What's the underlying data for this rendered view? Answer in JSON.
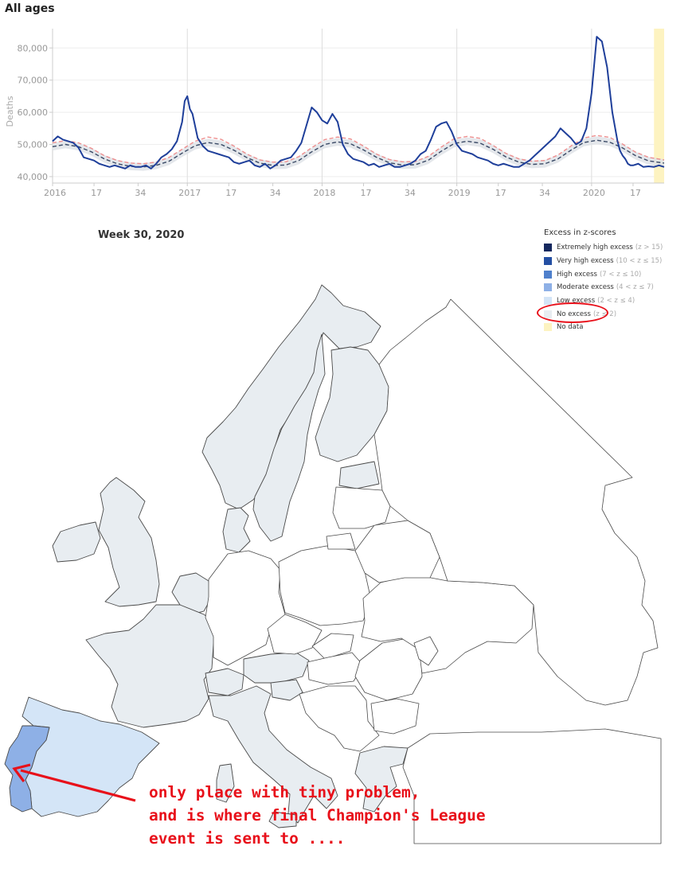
{
  "chart_data": {
    "type": "line",
    "title": "All ages",
    "ylabel": "Deaths",
    "xlabel": "",
    "ylim": [
      38000,
      86000
    ],
    "yticks": [
      40000,
      50000,
      60000,
      70000,
      80000
    ],
    "ytick_labels": [
      "40,000",
      "50,000",
      "60,000",
      "70,000",
      "80,000"
    ],
    "xlim": [
      0,
      236
    ],
    "xticks": [
      0,
      16,
      33,
      52,
      68,
      85,
      104,
      120,
      137,
      156,
      172,
      189,
      208,
      224
    ],
    "xtick_labels": [
      "2016",
      "17",
      "34",
      "2017",
      "17",
      "34",
      "2018",
      "17",
      "34",
      "2019",
      "17",
      "34",
      "2020",
      "17"
    ],
    "grid": true,
    "highlight_band": {
      "from": 233,
      "to": 236,
      "color": "#fdf3c1"
    },
    "series": [
      {
        "name": "",
        "color": "#1f3f9a",
        "style": "solid",
        "x": [
          0,
          2,
          4,
          6,
          8,
          10,
          12,
          14,
          16,
          18,
          20,
          22,
          24,
          26,
          28,
          30,
          32,
          34,
          36,
          38,
          40,
          42,
          44,
          46,
          48,
          50,
          51,
          52,
          53,
          54,
          56,
          58,
          60,
          62,
          64,
          66,
          68,
          70,
          72,
          74,
          76,
          78,
          80,
          82,
          84,
          86,
          88,
          90,
          92,
          94,
          96,
          98,
          100,
          102,
          104,
          106,
          108,
          110,
          112,
          114,
          116,
          118,
          120,
          122,
          124,
          126,
          128,
          130,
          132,
          134,
          136,
          138,
          140,
          142,
          144,
          146,
          148,
          150,
          152,
          154,
          156,
          158,
          160,
          162,
          164,
          166,
          168,
          170,
          172,
          174,
          176,
          178,
          180,
          182,
          184,
          186,
          188,
          190,
          192,
          194,
          196,
          198,
          200,
          202,
          204,
          206,
          208,
          210,
          212,
          214,
          216,
          218,
          219,
          220,
          221,
          222,
          223,
          224,
          226,
          228,
          230,
          232,
          234,
          236
        ],
        "y": [
          51000,
          52500,
          51500,
          51000,
          50500,
          49000,
          46000,
          45500,
          45000,
          44000,
          43500,
          43000,
          43500,
          43000,
          42500,
          43500,
          43000,
          43000,
          43500,
          42500,
          44000,
          46000,
          47000,
          48500,
          51000,
          57000,
          63500,
          65000,
          61000,
          59500,
          52000,
          49500,
          48000,
          47500,
          47000,
          46500,
          46000,
          44500,
          44000,
          44500,
          45000,
          43500,
          43000,
          44000,
          42500,
          43500,
          45000,
          45500,
          46000,
          48000,
          50500,
          56000,
          61500,
          60000,
          57500,
          56500,
          59500,
          57000,
          50000,
          47000,
          45500,
          45000,
          44500,
          43500,
          44000,
          43000,
          43500,
          44000,
          43000,
          43000,
          43500,
          44000,
          45000,
          47000,
          48000,
          51500,
          55500,
          56500,
          57000,
          54000,
          50000,
          48000,
          47500,
          47000,
          46000,
          45500,
          45000,
          44000,
          43500,
          44000,
          43500,
          43000,
          43000,
          44000,
          45000,
          46500,
          48000,
          49500,
          51000,
          52500,
          55000,
          53500,
          52000,
          50000,
          51000,
          55000,
          66000,
          83500,
          82000,
          74000,
          60000,
          51000,
          48000,
          46500,
          45500,
          44000,
          43500,
          43500,
          44000,
          43000,
          43200,
          43000,
          43500,
          43000
        ]
      },
      {
        "name": "",
        "color": "#ee8f8f",
        "style": "dashed",
        "x": [
          0,
          5,
          10,
          15,
          20,
          25,
          30,
          35,
          40,
          45,
          50,
          55,
          60,
          65,
          70,
          75,
          80,
          85,
          90,
          95,
          100,
          105,
          110,
          115,
          120,
          125,
          130,
          135,
          140,
          145,
          150,
          155,
          160,
          165,
          170,
          175,
          180,
          185,
          190,
          195,
          200,
          205,
          210,
          215,
          220,
          225,
          230,
          236
        ],
        "y": [
          50500,
          51200,
          50500,
          48800,
          46500,
          45000,
          44200,
          44000,
          44500,
          46000,
          48500,
          51000,
          52300,
          51600,
          49500,
          47000,
          45200,
          44500,
          44600,
          46200,
          49000,
          51500,
          52300,
          51700,
          49500,
          47000,
          45300,
          44600,
          44700,
          46300,
          49200,
          51800,
          52500,
          51900,
          49700,
          47200,
          45500,
          44800,
          45000,
          46700,
          49500,
          52000,
          52800,
          52200,
          50100,
          47600,
          46000,
          45200
        ]
      },
      {
        "name": "",
        "color": "#3a4a66",
        "style": "dashed",
        "x": [
          0,
          5,
          10,
          15,
          20,
          25,
          30,
          35,
          40,
          45,
          50,
          55,
          60,
          65,
          70,
          75,
          80,
          85,
          90,
          95,
          100,
          105,
          110,
          115,
          120,
          125,
          130,
          135,
          140,
          145,
          150,
          155,
          160,
          165,
          170,
          175,
          180,
          185,
          190,
          195,
          200,
          205,
          210,
          215,
          220,
          225,
          230,
          236
        ],
        "y": [
          49300,
          50000,
          49300,
          47700,
          45500,
          44000,
          43200,
          43000,
          43500,
          44800,
          47300,
          49600,
          50600,
          50000,
          48200,
          45900,
          44200,
          43500,
          43600,
          45000,
          47700,
          50000,
          50800,
          50200,
          48300,
          46000,
          44300,
          43600,
          43700,
          45100,
          47900,
          50300,
          51000,
          50400,
          48500,
          46100,
          44500,
          43800,
          44000,
          45500,
          48200,
          50600,
          51300,
          50700,
          48900,
          46500,
          44900,
          44200
        ]
      }
    ]
  },
  "map": {
    "title": "Week 30, 2020",
    "legend": {
      "title": "Excess in z-scores",
      "items": [
        {
          "label": "Extremely high excess",
          "range": "(z > 15)",
          "color": "#14285e"
        },
        {
          "label": "Very high excess",
          "range": "(10 < z ≤ 15)",
          "color": "#244fa3"
        },
        {
          "label": "High excess",
          "range": "(7 < z ≤ 10)",
          "color": "#4f80cc"
        },
        {
          "label": "Moderate excess",
          "range": "(4 < z ≤ 7)",
          "color": "#8eb0e6"
        },
        {
          "label": "Low excess",
          "range": "(2 < z ≤ 4)",
          "color": "#d4e5f7"
        },
        {
          "label": "No excess",
          "range": "(z ≤ 2)",
          "color": "#e8edf1"
        },
        {
          "label": "No data",
          "range": "",
          "color": "#fdf3c1"
        }
      ]
    },
    "colors": {
      "no_excess": "#e8edf1",
      "low_excess": "#d4e5f7",
      "moderate_excess": "#8eb0e6",
      "no_data_fill": "#ffffff",
      "border": "#4a4a4a"
    }
  },
  "annotation": {
    "lines": [
      "only place with tiny problem,",
      "and is where final Champion's League",
      "event is sent to ...."
    ],
    "color": "#e8101a"
  }
}
